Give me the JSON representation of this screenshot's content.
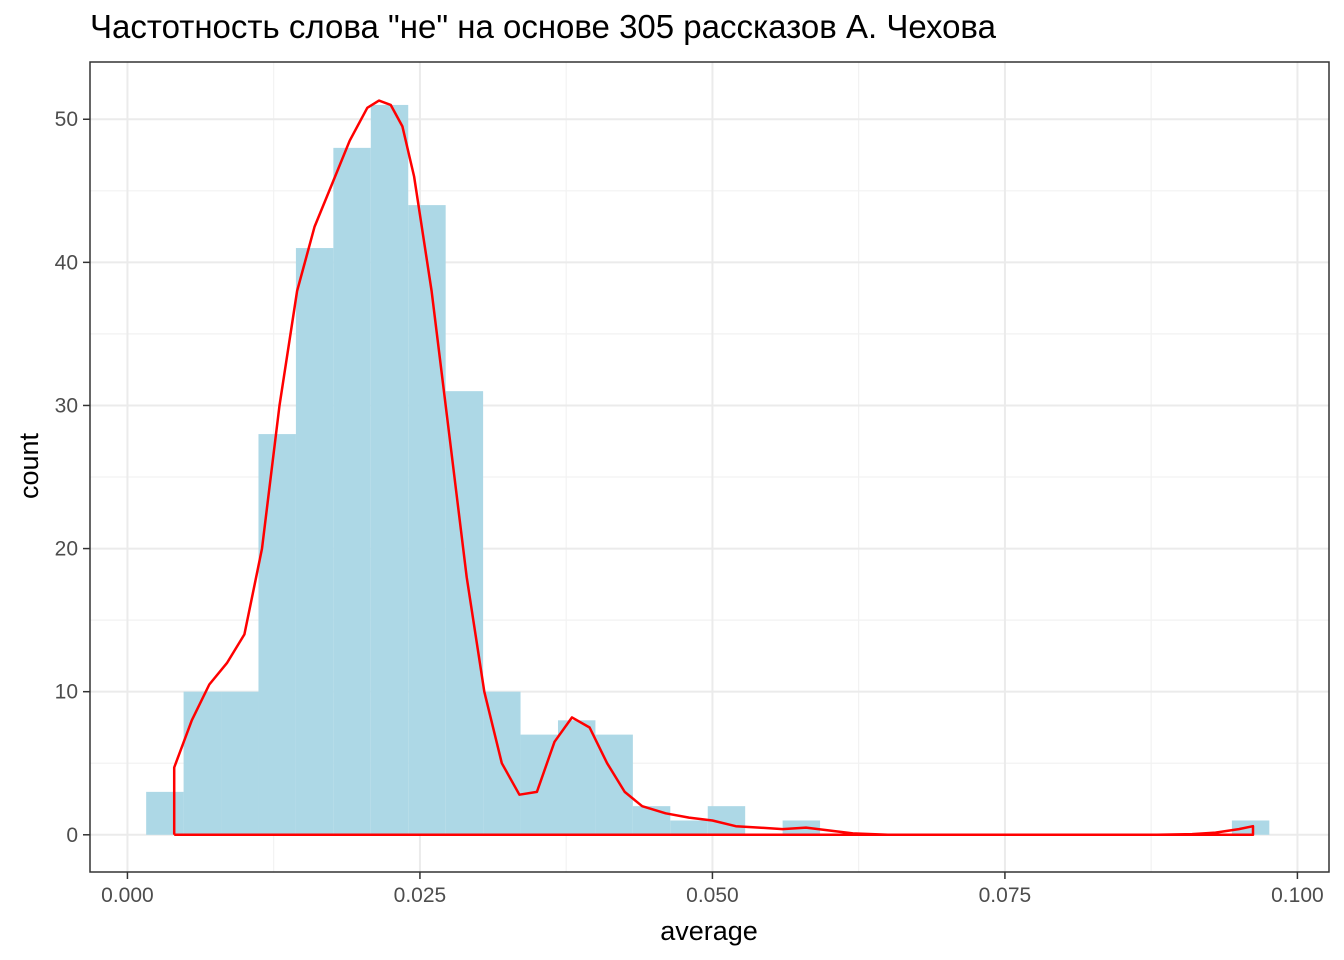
{
  "chart_data": {
    "type": "histogram",
    "title": "Частотность слова \"не\" на основе 305 рассказов А. Чехова",
    "xlabel": "average",
    "ylabel": "count",
    "xlim": [
      -0.0032,
      0.1027
    ],
    "ylim": [
      -2.6,
      54.0
    ],
    "x_ticks": [
      0.0,
      0.025,
      0.05,
      0.075,
      0.1
    ],
    "x_tick_labels": [
      "0.000",
      "0.025",
      "0.050",
      "0.075",
      "0.100"
    ],
    "y_ticks": [
      0,
      10,
      20,
      30,
      40,
      50
    ],
    "y_tick_labels": [
      "0",
      "10",
      "20",
      "30",
      "40",
      "50"
    ],
    "grid": true,
    "bin_width": 0.0032,
    "bins": [
      {
        "x0": 0.0016,
        "x1": 0.0048,
        "count": 3
      },
      {
        "x0": 0.0048,
        "x1": 0.008,
        "count": 10
      },
      {
        "x0": 0.008,
        "x1": 0.0112,
        "count": 10
      },
      {
        "x0": 0.0112,
        "x1": 0.0144,
        "count": 28
      },
      {
        "x0": 0.0144,
        "x1": 0.0176,
        "count": 41
      },
      {
        "x0": 0.0176,
        "x1": 0.0208,
        "count": 48
      },
      {
        "x0": 0.0208,
        "x1": 0.024,
        "count": 51
      },
      {
        "x0": 0.024,
        "x1": 0.0272,
        "count": 44
      },
      {
        "x0": 0.0272,
        "x1": 0.0304,
        "count": 31
      },
      {
        "x0": 0.0304,
        "x1": 0.0336,
        "count": 10
      },
      {
        "x0": 0.0336,
        "x1": 0.0368,
        "count": 7
      },
      {
        "x0": 0.0368,
        "x1": 0.04,
        "count": 8
      },
      {
        "x0": 0.04,
        "x1": 0.0432,
        "count": 7
      },
      {
        "x0": 0.0432,
        "x1": 0.0464,
        "count": 2
      },
      {
        "x0": 0.0464,
        "x1": 0.0496,
        "count": 1
      },
      {
        "x0": 0.0496,
        "x1": 0.0528,
        "count": 2
      },
      {
        "x0": 0.0528,
        "x1": 0.056,
        "count": 0
      },
      {
        "x0": 0.056,
        "x1": 0.0592,
        "count": 1
      },
      {
        "x0": 0.0944,
        "x1": 0.0976,
        "count": 1
      }
    ],
    "density_curve": {
      "x": [
        0.004,
        0.004,
        0.0055,
        0.007,
        0.0085,
        0.01,
        0.0115,
        0.013,
        0.0145,
        0.016,
        0.0175,
        0.019,
        0.0205,
        0.0215,
        0.0225,
        0.0235,
        0.0245,
        0.026,
        0.0275,
        0.029,
        0.0305,
        0.032,
        0.0335,
        0.035,
        0.0365,
        0.038,
        0.0395,
        0.041,
        0.0425,
        0.044,
        0.046,
        0.048,
        0.05,
        0.052,
        0.054,
        0.056,
        0.058,
        0.06,
        0.062,
        0.065,
        0.07,
        0.08,
        0.088,
        0.091,
        0.093,
        0.095,
        0.0962,
        0.0962,
        0.004
      ],
      "y": [
        0.0,
        4.7,
        8.0,
        10.5,
        12.0,
        14.0,
        20.0,
        30.0,
        38.0,
        42.5,
        45.5,
        48.5,
        50.8,
        51.3,
        51.0,
        49.5,
        46.0,
        38.0,
        28.0,
        18.0,
        10.0,
        5.0,
        2.8,
        3.0,
        6.5,
        8.2,
        7.5,
        5.0,
        3.0,
        2.0,
        1.5,
        1.2,
        1.0,
        0.6,
        0.5,
        0.4,
        0.5,
        0.3,
        0.1,
        0.0,
        0.0,
        0.0,
        0.0,
        0.05,
        0.15,
        0.4,
        0.6,
        0.0,
        0.0
      ]
    },
    "colors": {
      "bars": "#add8e6",
      "density": "#ff0000",
      "grid_major": "#ebebeb",
      "grid_minor": "#f2f2f2",
      "panel_border": "#333333",
      "axis_text": "#4d4d4d"
    }
  }
}
